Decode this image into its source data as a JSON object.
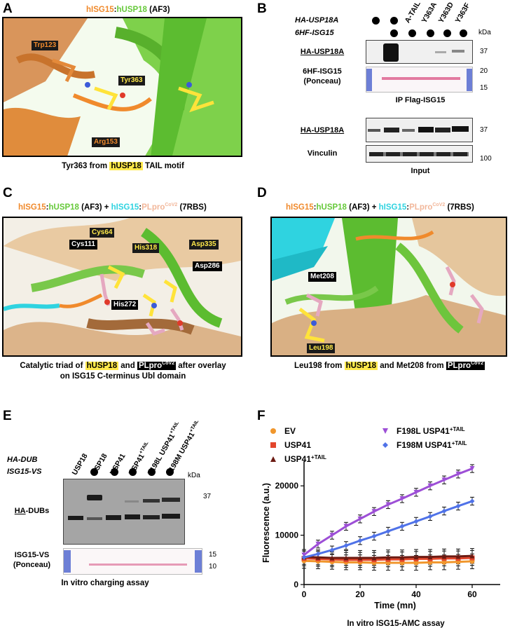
{
  "panels": {
    "A": {
      "letter": "A",
      "title_parts": [
        "hISG15",
        ":",
        "hUSP18",
        " (AF3)"
      ],
      "labels": [
        "Trp123",
        "Tyr363",
        "Arg153"
      ],
      "caption_pre": "Tyr363 from ",
      "caption_hl": "hUSP18",
      "caption_post": " TAIL motif"
    },
    "B": {
      "letter": "B",
      "row_labels": [
        "HA-USP18A",
        "6HF-ISG15"
      ],
      "lanes": [
        "A-TAIL",
        "Y363A",
        "Y363D",
        "Y363F"
      ],
      "kda": "kDa",
      "blots": [
        {
          "label": "HA-USP18A",
          "markers": [
            "37"
          ]
        },
        {
          "label": "6HF-ISG15\n(Ponceau)",
          "markers": [
            "20",
            "15"
          ]
        },
        {
          "label": "HA-USP18A",
          "markers": [
            "37"
          ]
        },
        {
          "label": "Vinculin",
          "markers": [
            "100"
          ]
        }
      ],
      "ip_label": "IP Flag-ISG15",
      "input_label": "Input"
    },
    "C": {
      "letter": "C",
      "title_parts": [
        "hISG15",
        ":",
        "hUSP18",
        " (AF3) + ",
        "hISG15",
        ":",
        "PLpro",
        "CoV2",
        " (7RBS)"
      ],
      "labels": [
        "Cys64",
        "Cys111",
        "His318",
        "Asp335",
        "Asp286",
        "His272"
      ],
      "caption_l1_pre": "Catalytic triad of ",
      "caption_l1_hl1": "hUSP18",
      "caption_l1_mid": " and ",
      "caption_l1_hl2": "PLpro",
      "caption_l1_sup": "CoV2",
      "caption_l1_post": " after overlay",
      "caption_l2": "on ISG15 C-terminus Ubl domain"
    },
    "D": {
      "letter": "D",
      "title_parts": [
        "hISG15",
        ":",
        "hUSP18",
        " (AF3) + ",
        "hISG15",
        ":",
        "PLpro",
        "CoV2",
        " (7RBS)"
      ],
      "labels": [
        "Met208",
        "Leu198"
      ],
      "caption_pre": "Leu198 from ",
      "caption_hl1": "hUSP18",
      "caption_mid": " and Met208 from ",
      "caption_hl2": "PLpro",
      "caption_sup": "CoV2"
    },
    "E": {
      "letter": "E",
      "lanes": [
        "USP18",
        "USP18",
        "USP41",
        "USP41",
        "F198L USP41",
        "F198M USP41"
      ],
      "lane_sup": [
        "",
        "",
        "",
        "+TAIL",
        "+TAIL",
        "+TAIL"
      ],
      "row_labels": [
        "HA-DUB",
        "ISG15-VS"
      ],
      "kda": "kDa",
      "blots": [
        {
          "label_pre": "HA",
          "label_post": "-DUBs",
          "markers": [
            "37"
          ]
        },
        {
          "label": "ISG15-VS\n(Ponceau)",
          "markers": [
            "15",
            "10"
          ]
        }
      ],
      "caption": "In vitro charging assay"
    },
    "F": {
      "letter": "F",
      "caption": "In vitro ISG15-AMC assay"
    }
  },
  "chart_data": {
    "type": "scatter",
    "xlabel": "Time (mn)",
    "ylabel": "Fluorescence (a.u.)",
    "xlim": [
      0,
      70
    ],
    "ylim": [
      0,
      25000
    ],
    "xticks": [
      0,
      20,
      40,
      60
    ],
    "yticks": [
      0,
      10000,
      20000
    ],
    "ytick_labels": [
      "0",
      "10000",
      "20000"
    ],
    "legend_placement": "top",
    "series": [
      {
        "name": "EV",
        "color": "#f0962c",
        "marker": "circle",
        "x": [
          0,
          5,
          10,
          15,
          20,
          25,
          30,
          35,
          40,
          45,
          50,
          55,
          60
        ],
        "y": [
          4800,
          4700,
          4600,
          4500,
          4500,
          4400,
          4400,
          4400,
          4400,
          4500,
          4500,
          4600,
          4700
        ]
      },
      {
        "name": "USP41",
        "color": "#e2452b",
        "marker": "square",
        "x": [
          0,
          5,
          10,
          15,
          20,
          25,
          30,
          35,
          40,
          45,
          50,
          55,
          60
        ],
        "y": [
          5300,
          5200,
          5100,
          5000,
          5000,
          5000,
          5100,
          5100,
          5200,
          5200,
          5300,
          5300,
          5400
        ]
      },
      {
        "name": "USP41",
        "sup": "+TAIL",
        "color": "#6b1a12",
        "marker": "triangle",
        "x": [
          0,
          5,
          10,
          15,
          20,
          25,
          30,
          35,
          40,
          45,
          50,
          55,
          60
        ],
        "y": [
          5600,
          5500,
          5400,
          5400,
          5400,
          5400,
          5500,
          5500,
          5600,
          5600,
          5700,
          5700,
          5800
        ]
      },
      {
        "name": "F198L USP41",
        "sup": "+TAIL",
        "color": "#9d4fd6",
        "marker": "triangle-down",
        "x": [
          0,
          5,
          10,
          15,
          20,
          25,
          30,
          35,
          40,
          45,
          50,
          55,
          60
        ],
        "y": [
          6000,
          8200,
          10000,
          11800,
          13300,
          14800,
          16200,
          17400,
          18700,
          20000,
          21200,
          22400,
          23500
        ]
      },
      {
        "name": "F198M USP41",
        "sup": "+TAIL",
        "color": "#4f72e8",
        "marker": "diamond",
        "x": [
          0,
          5,
          10,
          15,
          20,
          25,
          30,
          35,
          40,
          45,
          50,
          55,
          60
        ],
        "y": [
          5500,
          6200,
          7000,
          7900,
          8900,
          9800,
          10800,
          11800,
          12800,
          13800,
          14900,
          15900,
          16900
        ]
      }
    ]
  }
}
